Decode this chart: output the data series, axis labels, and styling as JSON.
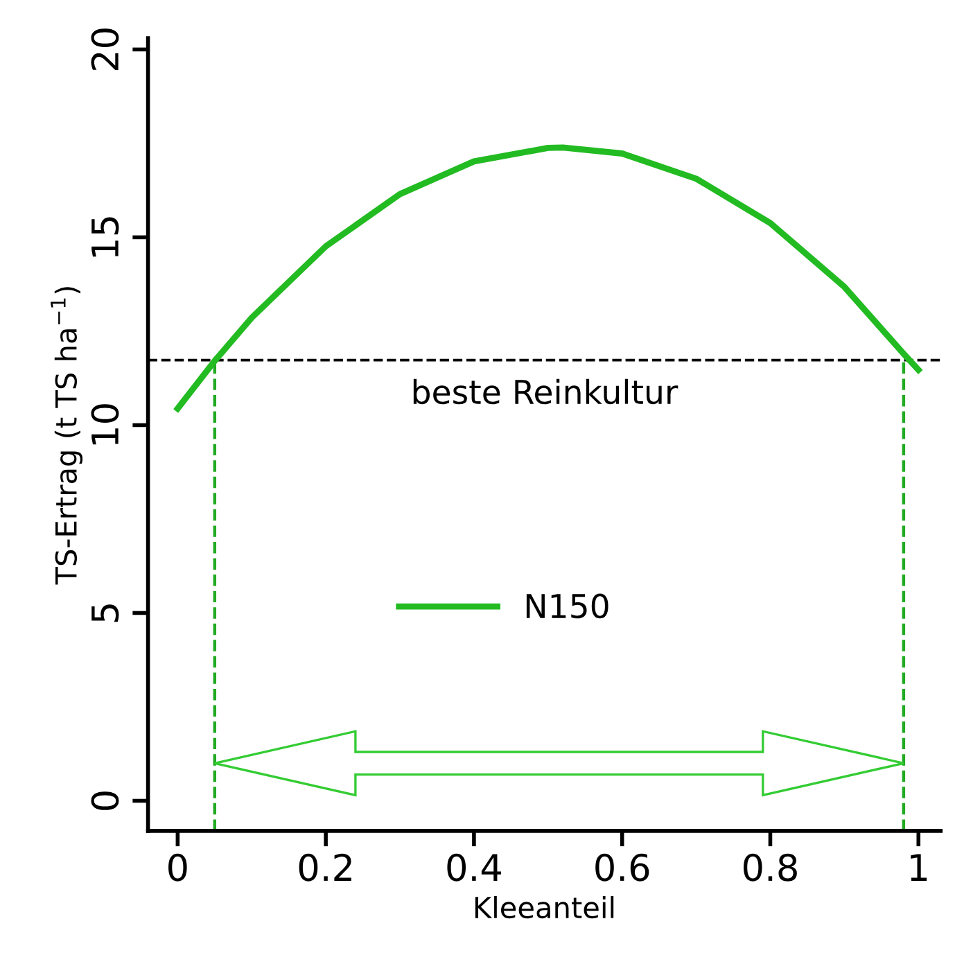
{
  "chart_data": {
    "type": "line",
    "xlabel": "Kleeanteil",
    "ylabel": "TS-Ertrag (t TS ha$^{−1}$)",
    "x": [
      0,
      0.05,
      0.1,
      0.2,
      0.3,
      0.4,
      0.5,
      0.52,
      0.6,
      0.7,
      0.8,
      0.9,
      0.98,
      1.0
    ],
    "series": [
      {
        "name": "N150",
        "color": "#22bb22",
        "values": [
          10.44,
          11.71,
          12.86,
          14.76,
          16.15,
          17.02,
          17.38,
          17.39,
          17.23,
          16.56,
          15.38,
          13.68,
          11.9,
          11.47
        ]
      }
    ],
    "xlim": [
      -0.04,
      1.03
    ],
    "ylim": [
      -0.8,
      20.3
    ],
    "xticks": [
      0,
      0.2,
      0.4,
      0.6,
      0.8,
      1
    ],
    "yticks": [
      0,
      5,
      10,
      15,
      20
    ],
    "ref_lines": [
      {
        "axis": "y",
        "value": 11.73,
        "label": "beste Reinkultur",
        "color": "#000000",
        "line_style": "dashed"
      },
      {
        "axis": "x",
        "value": 0.05,
        "color": "#22aa22",
        "line_style": "dashed"
      },
      {
        "axis": "x",
        "value": 0.98,
        "color": "#22aa22",
        "line_style": "dashed"
      }
    ],
    "legend": "center",
    "grid": false,
    "marker": "none",
    "line_style": "solid"
  }
}
